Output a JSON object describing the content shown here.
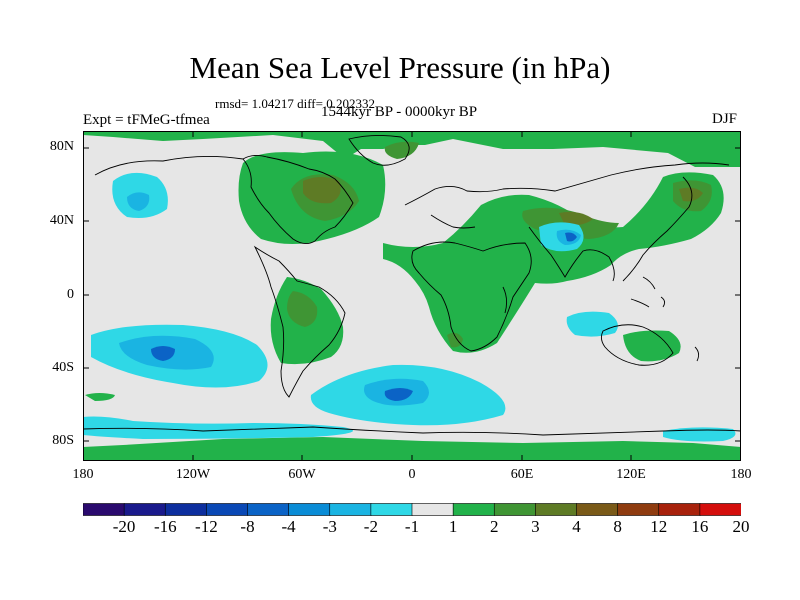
{
  "title": "Mean Sea Level Pressure (in hPa)",
  "subtitle": "rmsd= 1.04217 diff= 0.202332",
  "period": "1544kyr BP - 0000kyr BP",
  "experiment": "Expt = tFMeG-tfmea",
  "season": "DJF",
  "axes": {
    "y_ticks": [
      "80N",
      "40N",
      "0",
      "40S",
      "80S"
    ],
    "x_ticks": [
      "180",
      "120W",
      "60W",
      "0",
      "60E",
      "120E",
      "180"
    ]
  },
  "colorbar": {
    "labels": [
      "-20",
      "-16",
      "-12",
      "-8",
      "-4",
      "-3",
      "-2",
      "-1",
      "1",
      "2",
      "3",
      "4",
      "8",
      "12",
      "16",
      "20"
    ],
    "colors": [
      "#2a0a6e",
      "#1a1a8c",
      "#0d2e9e",
      "#0a48b5",
      "#0b63c6",
      "#0a8cd6",
      "#1ab4e2",
      "#2fd8e6",
      "#e6e6e6",
      "#22b24a",
      "#3f9534",
      "#5e7b25",
      "#7a5a18",
      "#8f3c10",
      "#a8220c",
      "#d40e0c"
    ]
  }
}
